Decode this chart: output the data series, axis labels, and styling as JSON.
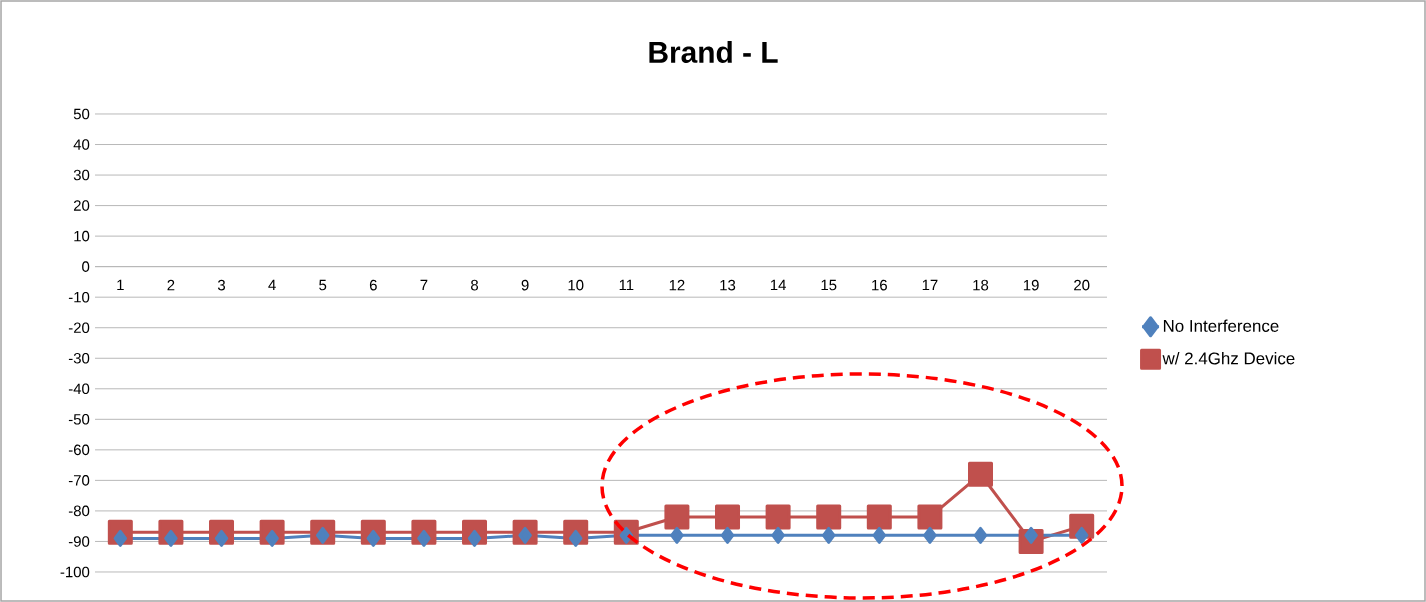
{
  "chart_data": {
    "type": "line",
    "title": "Brand - L",
    "categories": [
      "1",
      "2",
      "3",
      "4",
      "5",
      "6",
      "7",
      "8",
      "9",
      "10",
      "11",
      "12",
      "13",
      "14",
      "15",
      "16",
      "17",
      "18",
      "19",
      "20"
    ],
    "series": [
      {
        "name": "No Interference",
        "color": "#4f81bd",
        "marker": "diamond",
        "values": [
          -89,
          -89,
          -89,
          -89,
          -88,
          -89,
          -89,
          -89,
          -88,
          -89,
          -88,
          -88,
          -88,
          -88,
          -88,
          -88,
          -88,
          -88,
          -88,
          -88
        ]
      },
      {
        "name": "w/ 2.4Ghz Device",
        "color": "#c0504d",
        "marker": "square",
        "values": [
          -87,
          -87,
          -87,
          -87,
          -87,
          -87,
          -87,
          -87,
          -87,
          -87,
          -87,
          -82,
          -82,
          -82,
          -82,
          -82,
          -82,
          -68,
          -90,
          -85
        ]
      }
    ],
    "ylim": [
      -100,
      50
    ],
    "yticks": [
      -100,
      -90,
      -80,
      -70,
      -60,
      -50,
      -40,
      -30,
      -20,
      -10,
      0,
      10,
      20,
      30,
      40,
      50
    ],
    "grid": "y",
    "legend": "right"
  }
}
